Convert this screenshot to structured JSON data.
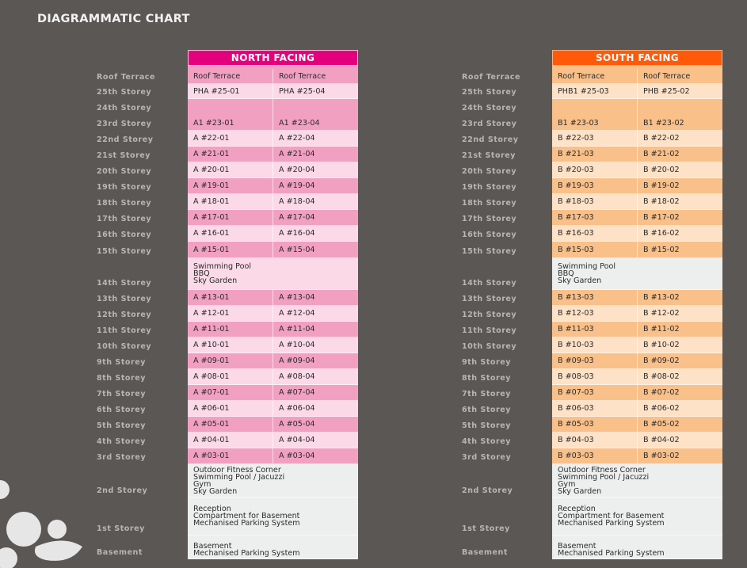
{
  "title": "DIAGRAMMATIC CHART",
  "colors": {
    "background": "#5a5755",
    "north_header": "#e4007c",
    "north_dark": "#f2a0c2",
    "north_light": "#fbd9e7",
    "south_header": "#ff5a0a",
    "south_dark": "#f9c08a",
    "south_light": "#fde2c7",
    "amenity_gray": "#edefef"
  },
  "north": {
    "header": "NORTH FACING",
    "rows": [
      {
        "labels": [
          "Roof Terrace"
        ],
        "cells": [
          "Roof Terrace",
          "Roof Terrace"
        ]
      },
      {
        "labels": [
          "25th Storey"
        ],
        "cells": [
          "PHA #25-01",
          "PHA #25-04"
        ]
      },
      {
        "labels": [
          "24th Storey",
          "23rd Storey"
        ],
        "cells": [
          "A1 #23-01",
          "A1 #23-04"
        ]
      },
      {
        "labels": [
          "22nd Storey"
        ],
        "cells": [
          "A #22-01",
          "A #22-04"
        ]
      },
      {
        "labels": [
          "21st Storey"
        ],
        "cells": [
          "A #21-01",
          "A #21-04"
        ]
      },
      {
        "labels": [
          "20th Storey"
        ],
        "cells": [
          "A #20-01",
          "A #20-04"
        ]
      },
      {
        "labels": [
          "19th Storey"
        ],
        "cells": [
          "A #19-01",
          "A #19-04"
        ]
      },
      {
        "labels": [
          "18th Storey"
        ],
        "cells": [
          "A #18-01",
          "A #18-04"
        ]
      },
      {
        "labels": [
          "17th Storey"
        ],
        "cells": [
          "A #17-01",
          "A #17-04"
        ]
      },
      {
        "labels": [
          "16th Storey"
        ],
        "cells": [
          "A #16-01",
          "A #16-04"
        ]
      },
      {
        "labels": [
          "15th Storey"
        ],
        "cells": [
          "A #15-01",
          "A #15-04"
        ]
      },
      {
        "labels": [
          "14th Storey"
        ],
        "amenity": [
          "Swimming Pool",
          "BBQ",
          "Sky Garden"
        ]
      },
      {
        "labels": [
          "13th Storey"
        ],
        "cells": [
          "A #13-01",
          "A #13-04"
        ]
      },
      {
        "labels": [
          "12th Storey"
        ],
        "cells": [
          "A #12-01",
          "A #12-04"
        ]
      },
      {
        "labels": [
          "11th Storey"
        ],
        "cells": [
          "A #11-01",
          "A #11-04"
        ]
      },
      {
        "labels": [
          "10th Storey"
        ],
        "cells": [
          "A #10-01",
          "A #10-04"
        ]
      },
      {
        "labels": [
          "9th Storey"
        ],
        "cells": [
          "A #09-01",
          "A #09-04"
        ]
      },
      {
        "labels": [
          "8th Storey"
        ],
        "cells": [
          "A #08-01",
          "A #08-04"
        ]
      },
      {
        "labels": [
          "7th Storey"
        ],
        "cells": [
          "A #07-01",
          "A #07-04"
        ]
      },
      {
        "labels": [
          "6th Storey"
        ],
        "cells": [
          "A #06-01",
          "A #06-04"
        ]
      },
      {
        "labels": [
          "5th Storey"
        ],
        "cells": [
          "A #05-01",
          "A #05-04"
        ]
      },
      {
        "labels": [
          "4th Storey"
        ],
        "cells": [
          "A #04-01",
          "A #04-04"
        ]
      },
      {
        "labels": [
          "3rd Storey"
        ],
        "cells": [
          "A #03-01",
          "A #03-04"
        ]
      },
      {
        "labels": [
          "2nd Storey"
        ],
        "amenity": [
          "Outdoor Fitness Corner",
          "Swimming Pool / Jacuzzi",
          "Gym",
          "Sky Garden"
        ]
      },
      {
        "labels": [
          "1st Storey"
        ],
        "amenity": [
          "Reception",
          "Compartment for Basement",
          "Mechanised Parking System"
        ]
      },
      {
        "labels": [
          "Basement"
        ],
        "amenity": [
          "Basement",
          "Mechanised Parking System"
        ]
      }
    ]
  },
  "south": {
    "header": "SOUTH FACING",
    "rows": [
      {
        "labels": [
          "Roof Terrace"
        ],
        "cells": [
          "Roof Terrace",
          "Roof Terrace"
        ]
      },
      {
        "labels": [
          "25th Storey"
        ],
        "cells": [
          "PHB1 #25-03",
          "PHB #25-02"
        ]
      },
      {
        "labels": [
          "24th Storey",
          "23rd Storey"
        ],
        "cells": [
          "B1 #23-03",
          "B1 #23-02"
        ]
      },
      {
        "labels": [
          "22nd Storey"
        ],
        "cells": [
          "B #22-03",
          "B #22-02"
        ]
      },
      {
        "labels": [
          "21st Storey"
        ],
        "cells": [
          "B #21-03",
          "B #21-02"
        ]
      },
      {
        "labels": [
          "20th Storey"
        ],
        "cells": [
          "B #20-03",
          "B #20-02"
        ]
      },
      {
        "labels": [
          "19th Storey"
        ],
        "cells": [
          "B #19-03",
          "B #19-02"
        ]
      },
      {
        "labels": [
          "18th Storey"
        ],
        "cells": [
          "B #18-03",
          "B #18-02"
        ]
      },
      {
        "labels": [
          "17th Storey"
        ],
        "cells": [
          "B #17-03",
          "B #17-02"
        ]
      },
      {
        "labels": [
          "16th Storey"
        ],
        "cells": [
          "B #16-03",
          "B #16-02"
        ]
      },
      {
        "labels": [
          "15th Storey"
        ],
        "cells": [
          "B #15-03",
          "B #15-02"
        ]
      },
      {
        "labels": [
          "14th Storey"
        ],
        "amenity": [
          "Swimming Pool",
          "BBQ",
          "Sky Garden"
        ]
      },
      {
        "labels": [
          "13th Storey"
        ],
        "cells": [
          "B #13-03",
          "B #13-02"
        ]
      },
      {
        "labels": [
          "12th Storey"
        ],
        "cells": [
          "B #12-03",
          "B #12-02"
        ]
      },
      {
        "labels": [
          "11th Storey"
        ],
        "cells": [
          "B #11-03",
          "B #11-02"
        ]
      },
      {
        "labels": [
          "10th Storey"
        ],
        "cells": [
          "B #10-03",
          "B #10-02"
        ]
      },
      {
        "labels": [
          "9th Storey"
        ],
        "cells": [
          "B #09-03",
          "B #09-02"
        ]
      },
      {
        "labels": [
          "8th Storey"
        ],
        "cells": [
          "B #08-03",
          "B #08-02"
        ]
      },
      {
        "labels": [
          "7th Storey"
        ],
        "cells": [
          "B #07-03",
          "B #07-02"
        ]
      },
      {
        "labels": [
          "6th Storey"
        ],
        "cells": [
          "B #06-03",
          "B #06-02"
        ]
      },
      {
        "labels": [
          "5th Storey"
        ],
        "cells": [
          "B #05-03",
          "B #05-02"
        ]
      },
      {
        "labels": [
          "4th Storey"
        ],
        "cells": [
          "B #04-03",
          "B #04-02"
        ]
      },
      {
        "labels": [
          "3rd Storey"
        ],
        "cells": [
          "B #03-03",
          "B #03-02"
        ]
      },
      {
        "labels": [
          "2nd Storey"
        ],
        "amenity": [
          "Outdoor Fitness Corner",
          "Swimming Pool / Jacuzzi",
          "Gym",
          "Sky Garden"
        ]
      },
      {
        "labels": [
          "1st Storey"
        ],
        "amenity": [
          "Reception",
          "Compartment for Basement",
          "Mechanised Parking System"
        ]
      },
      {
        "labels": [
          "Basement"
        ],
        "amenity": [
          "Basement",
          "Mechanised Parking System"
        ]
      }
    ]
  }
}
